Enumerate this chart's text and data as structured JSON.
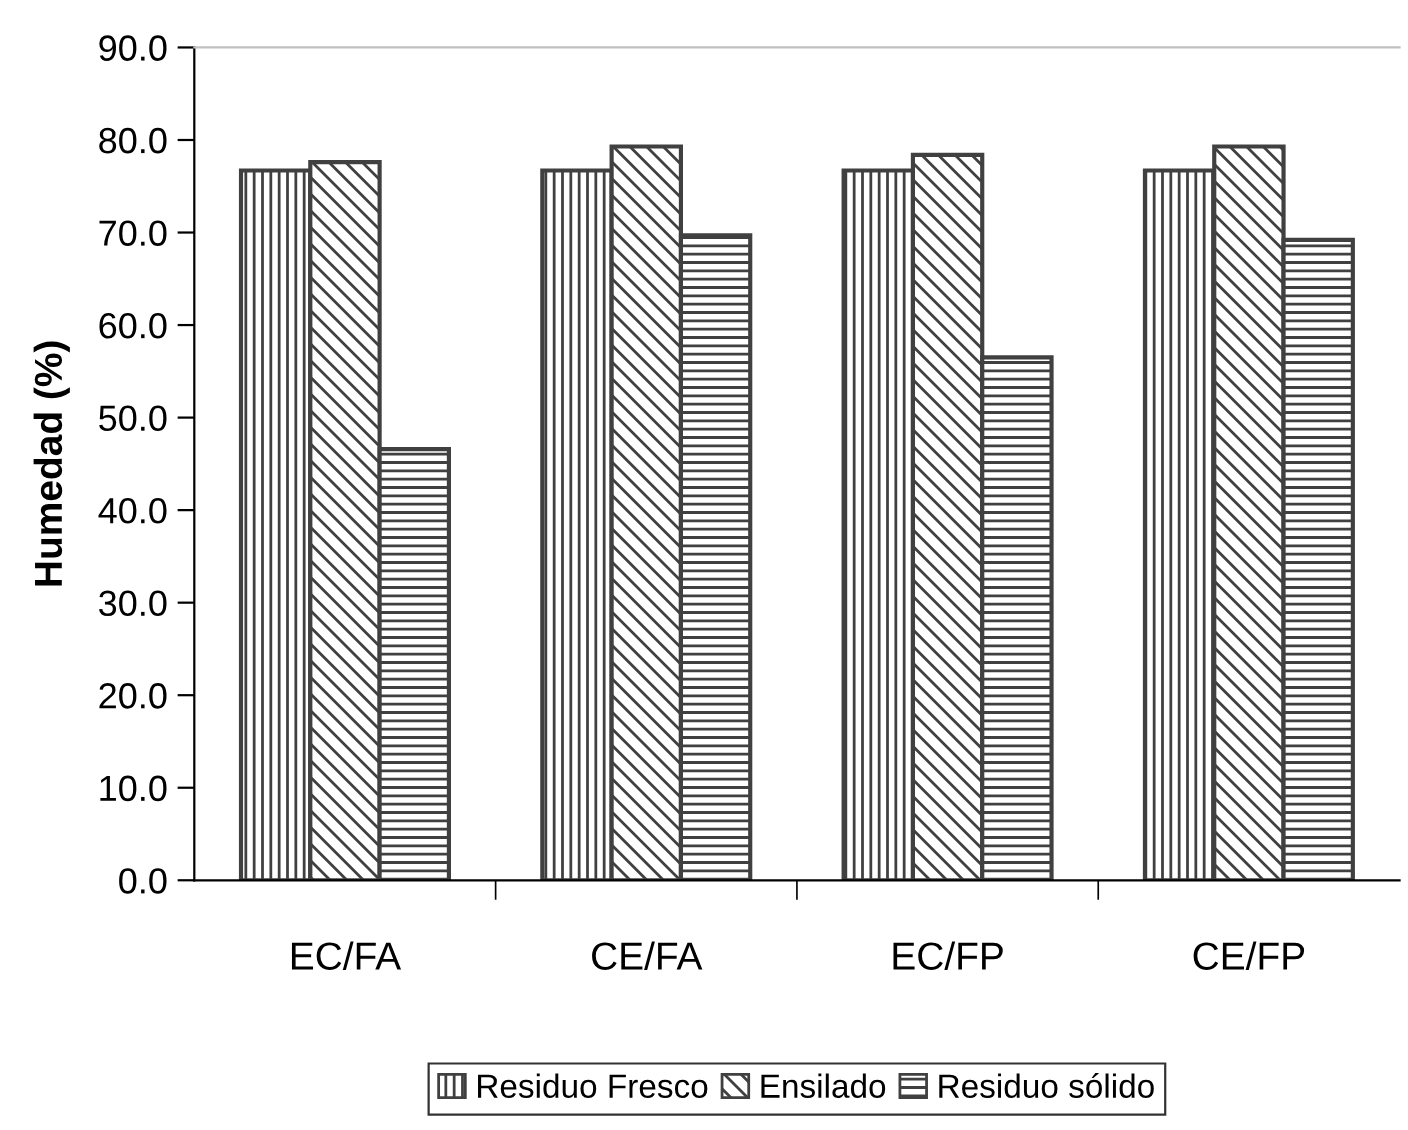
{
  "chart_data": {
    "type": "bar",
    "ylabel": "Humedad (%)",
    "categories": [
      "EC/FA",
      "CE/FA",
      "EC/FP",
      "CE/FP"
    ],
    "series": [
      {
        "name": "Residuo Fresco",
        "color": "#404040",
        "values": [
          76.7,
          76.7,
          76.7,
          76.7
        ]
      },
      {
        "name": "Ensilado",
        "color": "#404040",
        "values": [
          77.6,
          79.3,
          78.4,
          79.3
        ]
      },
      {
        "name": "Residuo sólido",
        "color": "#404040",
        "values": [
          46.6,
          69.7,
          56.5,
          69.2
        ]
      }
    ],
    "ylim": [
      0,
      90
    ],
    "yticks": [
      {
        "value": 0,
        "label": "0.0"
      },
      {
        "value": 10,
        "label": "10.0"
      },
      {
        "value": 20,
        "label": "20.0"
      },
      {
        "value": 30,
        "label": "30.0"
      },
      {
        "value": 40,
        "label": "40.0"
      },
      {
        "value": 50,
        "label": "50.0"
      },
      {
        "value": 60,
        "label": "60.0"
      },
      {
        "value": 70,
        "label": "70.0"
      },
      {
        "value": 80,
        "label": "80.0"
      },
      {
        "value": 90,
        "label": "90.0"
      }
    ],
    "grid": false,
    "legend": "bottom"
  }
}
